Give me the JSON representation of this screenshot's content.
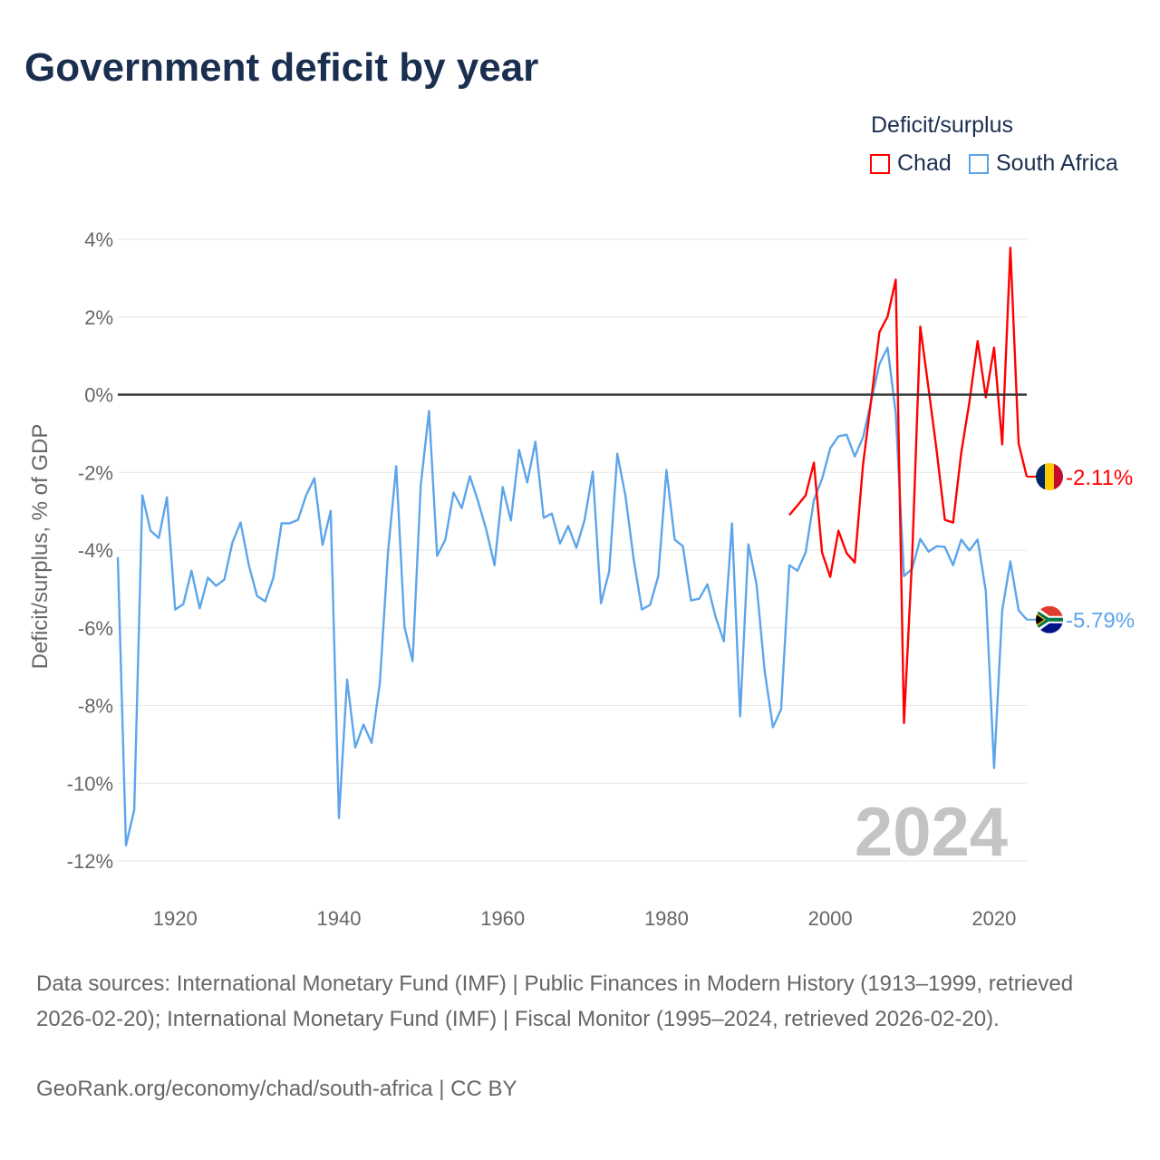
{
  "chart_data": {
    "type": "line",
    "title": "Government deficit by year",
    "ylabel": "Deficit/surplus, % of GDP",
    "xlabel": "",
    "ylim": [
      -12,
      4
    ],
    "xlim": [
      1913,
      2024
    ],
    "yticks": [
      4,
      2,
      0,
      -2,
      -4,
      -6,
      -8,
      -10,
      -12
    ],
    "ytick_labels": [
      "4%",
      "2%",
      "0%",
      "-2%",
      "-4%",
      "-6%",
      "-8%",
      "-10%",
      "-12%"
    ],
    "xticks": [
      1920,
      1940,
      1960,
      1980,
      2000,
      2020
    ],
    "xtick_labels": [
      "1920",
      "1940",
      "1960",
      "1980",
      "2000",
      "2020"
    ],
    "grid": true,
    "legend_title": "Deficit/surplus",
    "legend_placement": "top-right",
    "year_watermark": "2024",
    "series": [
      {
        "name": "Chad",
        "color": "#ff0000",
        "start_year": 1995,
        "end_label": "-2.11%",
        "values": [
          -3.1,
          -2.85,
          -2.59,
          -1.75,
          -4.06,
          -4.69,
          -3.5,
          -4.08,
          -4.32,
          -1.8,
          -0.14,
          1.61,
          2.01,
          2.96,
          -8.45,
          -4.2,
          1.75,
          0.16,
          -1.45,
          -3.22,
          -3.29,
          -1.49,
          -0.19,
          1.38,
          -0.07,
          1.21,
          -1.28,
          3.78,
          -1.26,
          -2.11
        ]
      },
      {
        "name": "South Africa",
        "color": "#5da5ea",
        "start_year": 1913,
        "end_label": "-5.79%",
        "values": [
          -4.18,
          -11.6,
          -10.69,
          -2.59,
          -3.5,
          -3.69,
          -2.64,
          -5.53,
          -5.39,
          -4.53,
          -5.5,
          -4.71,
          -4.92,
          -4.76,
          -3.8,
          -3.29,
          -4.39,
          -5.18,
          -5.32,
          -4.71,
          -3.31,
          -3.31,
          -3.22,
          -2.59,
          -2.15,
          -3.87,
          -2.99,
          -10.9,
          -7.33,
          -9.08,
          -8.49,
          -8.96,
          -7.4,
          -4.04,
          -1.84,
          -5.97,
          -6.86,
          -2.33,
          -0.42,
          -4.15,
          -3.73,
          -2.52,
          -2.92,
          -2.1,
          -2.75,
          -3.48,
          -4.39,
          -2.38,
          -3.24,
          -1.42,
          -2.26,
          -1.21,
          -3.17,
          -3.06,
          -3.83,
          -3.38,
          -3.94,
          -3.22,
          -1.98,
          -5.37,
          -4.55,
          -1.52,
          -2.61,
          -4.25,
          -5.53,
          -5.41,
          -4.67,
          -1.94,
          -3.73,
          -3.9,
          -5.3,
          -5.25,
          -4.88,
          -5.72,
          -6.35,
          -3.31,
          -8.28,
          -3.85,
          -4.88,
          -7.12,
          -8.56,
          -8.1,
          -4.39,
          -4.53,
          -4.06,
          -2.71,
          -2.17,
          -1.38,
          -1.07,
          -1.03,
          -1.59,
          -1.1,
          -0.16,
          0.79,
          1.21,
          -0.47,
          -4.67,
          -4.48,
          -3.71,
          -4.04,
          -3.9,
          -3.92,
          -4.39,
          -3.73,
          -4.01,
          -3.73,
          -5.06,
          -9.61,
          -5.55,
          -4.29,
          -5.55,
          -5.79
        ]
      }
    ]
  },
  "footer": {
    "sources": "Data sources: International Monetary Fund (IMF) | Public Finances in Modern History (1913–1999, retrieved 2026-02-20); International Monetary Fund (IMF) | Fiscal Monitor (1995–2024, retrieved 2026-02-20).",
    "credit": "GeoRank.org/economy/chad/south-africa | CC BY"
  }
}
